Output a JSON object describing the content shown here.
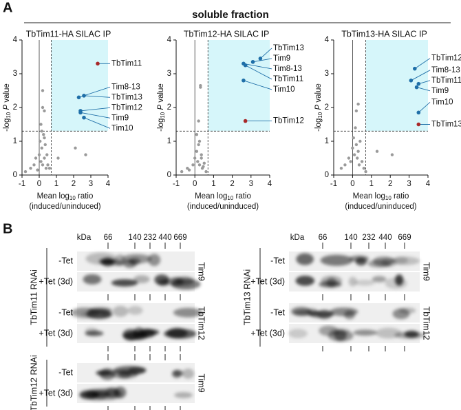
{
  "panel_a": {
    "label": "A",
    "heading": "soluble fraction"
  },
  "chart_data": [
    {
      "type": "scatter",
      "title": "TbTim11-HA SILAC IP",
      "x_label": {
        "prefix": "Mean log",
        "sub": "10",
        "suffix": " ratio",
        "line2": "(induced/uninduced)"
      },
      "y_label": {
        "prefix": "-log",
        "sub": "10",
        "italic": "P",
        "suffix": " value"
      },
      "xlim": [
        -1,
        4
      ],
      "ylim": [
        0,
        4
      ],
      "xticks": [
        -1,
        0,
        1,
        2,
        3,
        4
      ],
      "yticks": [
        0,
        1,
        2,
        3,
        4
      ],
      "thresholds": {
        "x": 0.7,
        "y": 1.3
      },
      "region_color": "#d6f6fa",
      "points": {
        "color": "#9a9a9a",
        "x": [
          -0.8,
          -0.5,
          -0.3,
          -0.2,
          -0.1,
          0,
          0.05,
          0.1,
          0.1,
          0.15,
          0.2,
          0.2,
          0.25,
          0.3,
          0.3,
          0.35,
          0.4,
          0.45,
          0.5,
          0.6,
          0.2,
          0.15,
          1.1,
          2.1,
          2.7,
          0.3
        ],
        "y": [
          0.1,
          0.2,
          0.3,
          0.5,
          0.15,
          0.6,
          1.0,
          0.4,
          1.5,
          0.8,
          0.3,
          2.5,
          1.2,
          0.5,
          1.9,
          0.9,
          0.2,
          0.6,
          0.3,
          0.2,
          2.0,
          1.3,
          0.5,
          0.8,
          0.6,
          1.1
        ]
      },
      "highlights": {
        "color": "#1f6fa8",
        "target_color": "#a82828",
        "target_index": 0,
        "labels": [
          "TbTim11",
          "Tim8-13",
          "TbTim13",
          "TbTim12",
          "Tim9",
          "Tim10"
        ],
        "x": [
          3.4,
          2.3,
          2.6,
          2.4,
          2.4,
          2.6
        ],
        "y": [
          3.3,
          2.3,
          2.35,
          1.9,
          1.85,
          1.7
        ]
      }
    },
    {
      "type": "scatter",
      "title": "TbTim12-HA SILAC IP",
      "x_label": {
        "prefix": "Mean log",
        "sub": "10",
        "suffix": " ratio",
        "line2": "(induced/uninduced)"
      },
      "y_label": {
        "prefix": "-log",
        "sub": "10",
        "italic": "P",
        "suffix": " value"
      },
      "xlim": [
        -1,
        4
      ],
      "ylim": [
        0,
        4
      ],
      "xticks": [
        -1,
        0,
        1,
        2,
        3,
        4
      ],
      "yticks": [
        0,
        1,
        2,
        3,
        4
      ],
      "thresholds": {
        "x": 0.7,
        "y": 1.3
      },
      "region_color": "#d6f6fa",
      "points": {
        "color": "#9a9a9a",
        "x": [
          -0.7,
          -0.4,
          -0.3,
          -0.1,
          0,
          0.1,
          0.1,
          0.15,
          0.2,
          0.25,
          0.3,
          0.35,
          0.4,
          0.5,
          0.6,
          0.2,
          0.3,
          0.25,
          0.35,
          0.45
        ],
        "y": [
          0.1,
          0.2,
          0.15,
          0.3,
          0.5,
          0.7,
          1.2,
          0.4,
          0.9,
          0.3,
          2.6,
          0.6,
          0.2,
          0.35,
          0.1,
          1.6,
          2.65,
          1.0,
          0.5,
          0.25
        ]
      },
      "highlights": {
        "color": "#1f6fa8",
        "target_color": "#a82828",
        "target_index": 5,
        "labels": [
          "TbTim13",
          "Tim9",
          "Tim8-13",
          "TbTim11",
          "Tim10",
          "TbTim12"
        ],
        "x": [
          3.5,
          3.1,
          2.6,
          2.7,
          2.6,
          2.7
        ],
        "y": [
          3.45,
          3.35,
          3.3,
          3.25,
          2.8,
          1.6
        ]
      }
    },
    {
      "type": "scatter",
      "title": "TbTim13-HA SILAC IP",
      "x_label": {
        "prefix": "Mean log",
        "sub": "10",
        "suffix": " ratio",
        "line2": "(induced/uninduced)"
      },
      "y_label": {
        "prefix": "-log",
        "sub": "10",
        "italic": "P",
        "suffix": " value"
      },
      "xlim": [
        -1,
        4
      ],
      "ylim": [
        0,
        4
      ],
      "xticks": [
        -1,
        0,
        1,
        2,
        3,
        4
      ],
      "yticks": [
        0,
        1,
        2,
        3,
        4
      ],
      "thresholds": {
        "x": 0.7,
        "y": 1.3
      },
      "region_color": "#d6f6fa",
      "points": {
        "color": "#9a9a9a",
        "x": [
          -0.6,
          -0.4,
          -0.2,
          -0.1,
          0,
          0.05,
          0.1,
          0.15,
          0.2,
          0.25,
          0.3,
          0.35,
          0.4,
          0.5,
          0.6,
          0.7,
          1.3,
          2.1,
          0.2,
          0.3
        ],
        "y": [
          0.2,
          0.3,
          0.5,
          0.4,
          0.8,
          1.1,
          0.6,
          1.4,
          0.9,
          0.5,
          0.7,
          0.3,
          1.0,
          0.4,
          0.2,
          0.1,
          0.7,
          0.6,
          1.9,
          2.1
        ]
      },
      "highlights": {
        "color": "#1f6fa8",
        "target_color": "#a82828",
        "target_index": 5,
        "labels": [
          "TbTim12",
          "Tim8-13",
          "TbTim11",
          "Tim9",
          "Tim10",
          "TbTim13"
        ],
        "x": [
          3.3,
          3.1,
          3.5,
          3.4,
          3.5,
          3.5
        ],
        "y": [
          3.15,
          2.8,
          2.7,
          2.6,
          1.85,
          1.5
        ]
      }
    }
  ],
  "panel_b": {
    "label": "B",
    "kda": "kDa",
    "markers": [
      "66",
      "140",
      "232",
      "440",
      "669"
    ],
    "blocks": [
      {
        "name": "TbTim11 RNAi",
        "blots": [
          {
            "antibody": "Tim9",
            "rows": [
              "-Tet",
              "+Tet (3d)"
            ]
          },
          {
            "antibody": "TbTim12",
            "rows": [
              "-Tet",
              "+Tet (3d)"
            ]
          }
        ]
      },
      {
        "name": "TbTim12 RNAi",
        "blots": [
          {
            "antibody": "Tim9",
            "rows": [
              "-Tet",
              "+Tet (3d)"
            ]
          }
        ]
      },
      {
        "name": "TbTim13 RNAi",
        "blots": [
          {
            "antibody": "Tim9",
            "rows": [
              "-Tet",
              "+Tet (3d)"
            ]
          },
          {
            "antibody": "TbTim12",
            "rows": [
              "-Tet",
              "+Tet (3d)"
            ]
          }
        ]
      }
    ]
  }
}
